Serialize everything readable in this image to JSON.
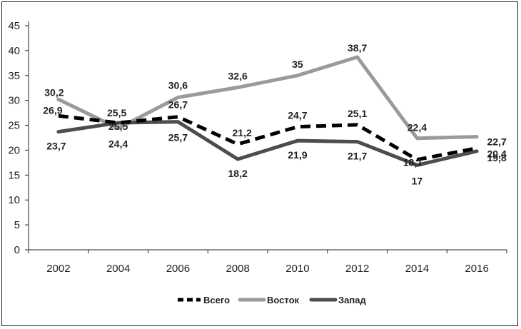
{
  "chart_data": {
    "type": "line",
    "title": "",
    "xlabel": "",
    "ylabel": "",
    "categories": [
      "2002",
      "2004",
      "2006",
      "2008",
      "2010",
      "2012",
      "2014",
      "2016"
    ],
    "ylim": [
      0,
      45
    ],
    "yticks": [
      0,
      5,
      10,
      15,
      20,
      25,
      30,
      35,
      40,
      45
    ],
    "grid": false,
    "legend_position": "bottom",
    "series": [
      {
        "name": "Всего",
        "values": [
          26.9,
          25.5,
          26.7,
          21.2,
          24.7,
          25.1,
          18.1,
          20.4
        ],
        "labels": [
          "26,9",
          "25,5",
          "26,7",
          "21,2",
          "24,7",
          "25,1",
          "18,1",
          "20,4"
        ],
        "color": "#000000",
        "dash": "dashed"
      },
      {
        "name": "Восток",
        "values": [
          30.2,
          24.4,
          30.6,
          32.6,
          35,
          38.7,
          22.4,
          22.7
        ],
        "labels": [
          "30,2",
          "24,4",
          "30,6",
          "32,6",
          "35",
          "38,7",
          "22,4",
          "22,7"
        ],
        "color": "#9a9a9a",
        "dash": "solid"
      },
      {
        "name": "Запад",
        "values": [
          23.7,
          25.5,
          25.7,
          18.2,
          21.9,
          21.7,
          17,
          19.8
        ],
        "labels": [
          "23,7",
          "25,5",
          "25,7",
          "18,2",
          "21,9",
          "21,7",
          "17",
          "19,8"
        ],
        "color": "#4d4d4f",
        "dash": "solid"
      }
    ]
  }
}
